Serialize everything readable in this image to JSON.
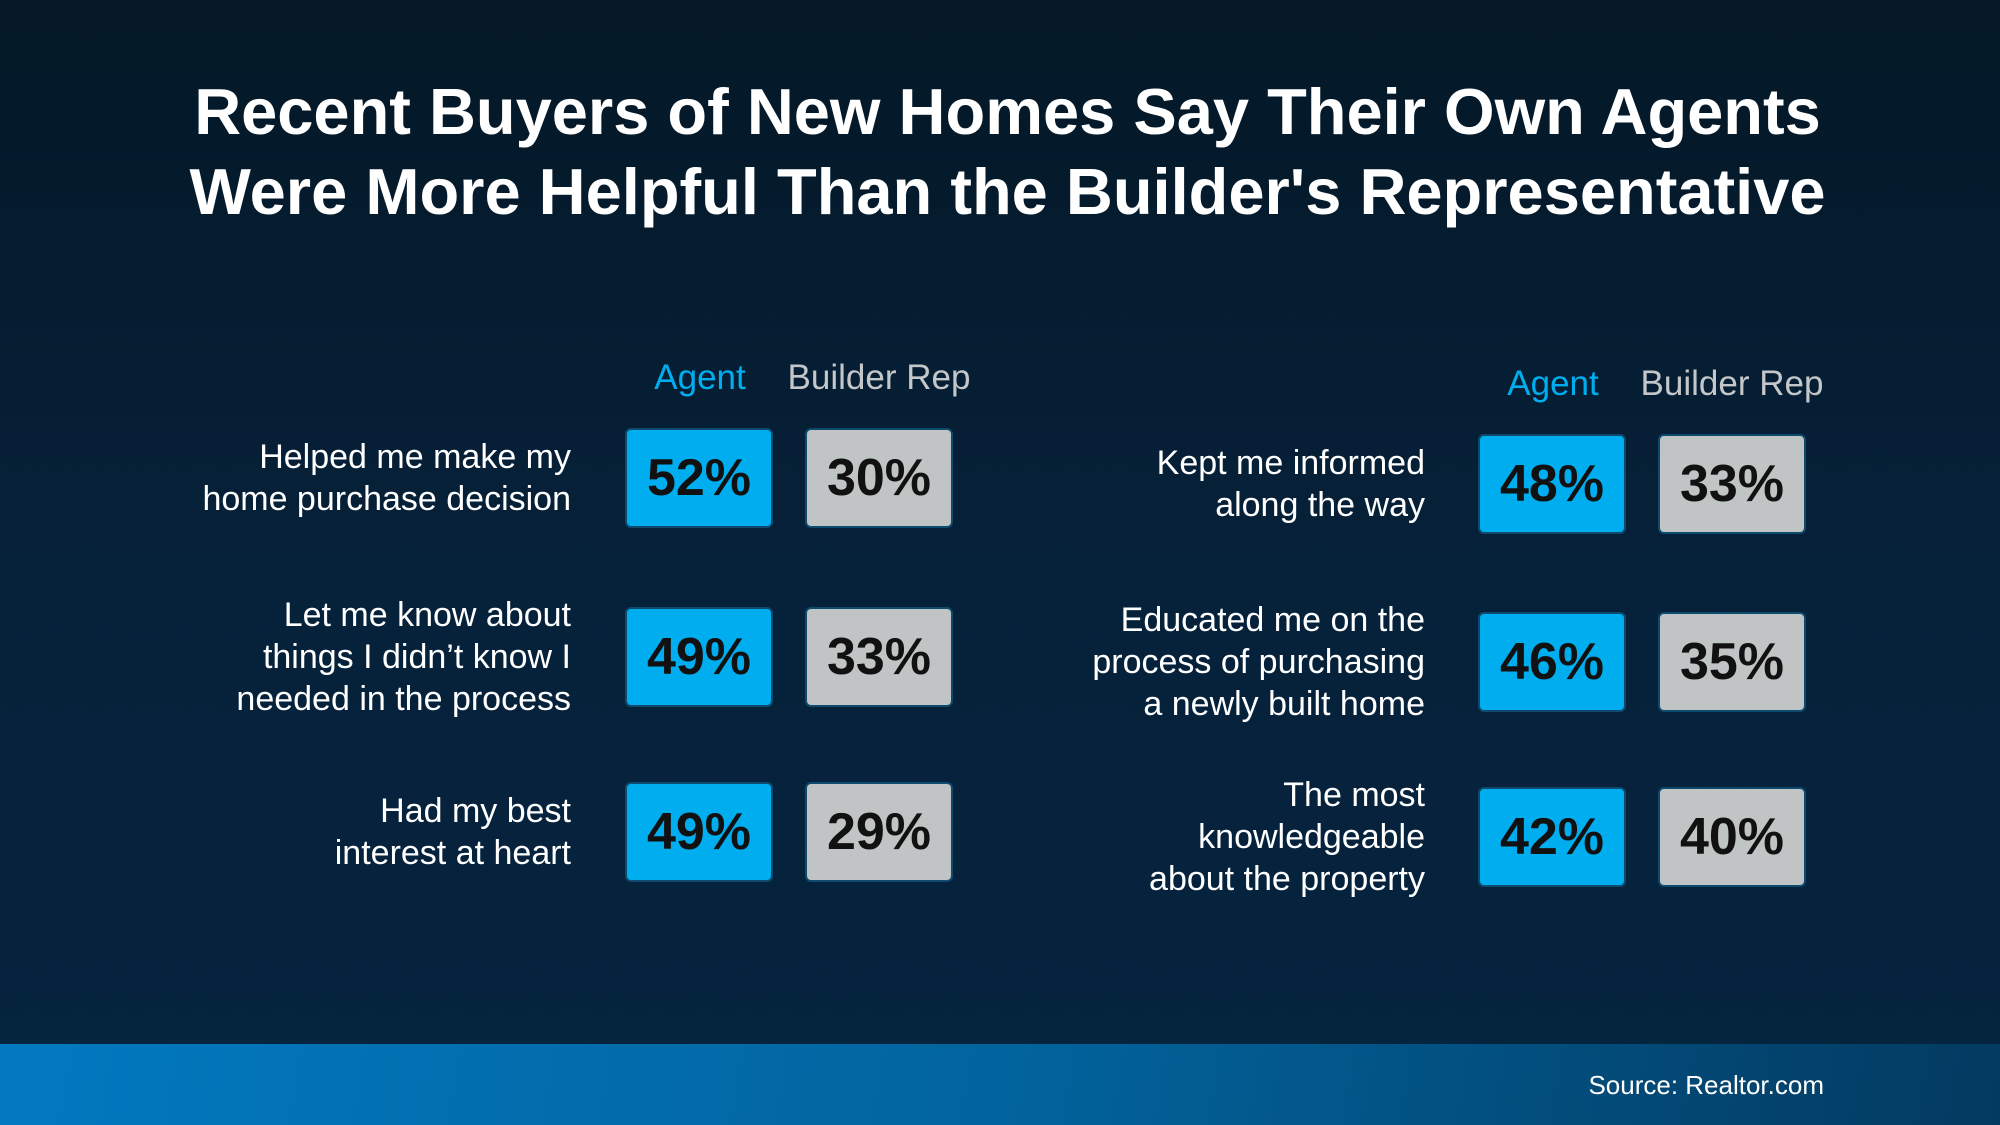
{
  "chart_data": {
    "type": "table",
    "title": "Recent Buyers of New Homes Say Their Own Agents Were More Helpful Than the Builder's Representative",
    "title_lines": [
      "Recent Buyers of New Homes Say Their Own Agents",
      "Were More Helpful Than the Builder's Representative"
    ],
    "columns": [
      "Agent",
      "Builder Rep"
    ],
    "colors": {
      "Agent": "#00aeef",
      "Builder Rep": "#c1c4c5"
    },
    "groups": [
      {
        "rows": [
          {
            "label": "Helped me make my home purchase decision",
            "lines": [
              "Helped me make my",
              "home purchase decision"
            ],
            "agent": "52%",
            "builder": "30%"
          },
          {
            "label": "Let me know about things I didn’t know I needed in the process",
            "lines": [
              "Let me know about",
              "things I didn’t know I",
              "needed in the process"
            ],
            "agent": "49%",
            "builder": "33%"
          },
          {
            "label": "Had my best interest at heart",
            "lines": [
              "Had my best",
              "interest at heart"
            ],
            "agent": "49%",
            "builder": "29%"
          }
        ]
      },
      {
        "rows": [
          {
            "label": "Kept me informed along the way",
            "lines": [
              "Kept me informed",
              "along the way"
            ],
            "agent": "48%",
            "builder": "33%"
          },
          {
            "label": "Educated me on the process of purchasing a newly built home",
            "lines": [
              "Educated me on the",
              "process of purchasing",
              "a newly built home"
            ],
            "agent": "46%",
            "builder": "35%"
          },
          {
            "label": "The most knowledgeable about the property",
            "lines": [
              "The most",
              "knowledgeable",
              "about the property"
            ],
            "agent": "42%",
            "builder": "40%"
          }
        ]
      }
    ]
  },
  "footer": {
    "source": "Source: Realtor.com"
  }
}
